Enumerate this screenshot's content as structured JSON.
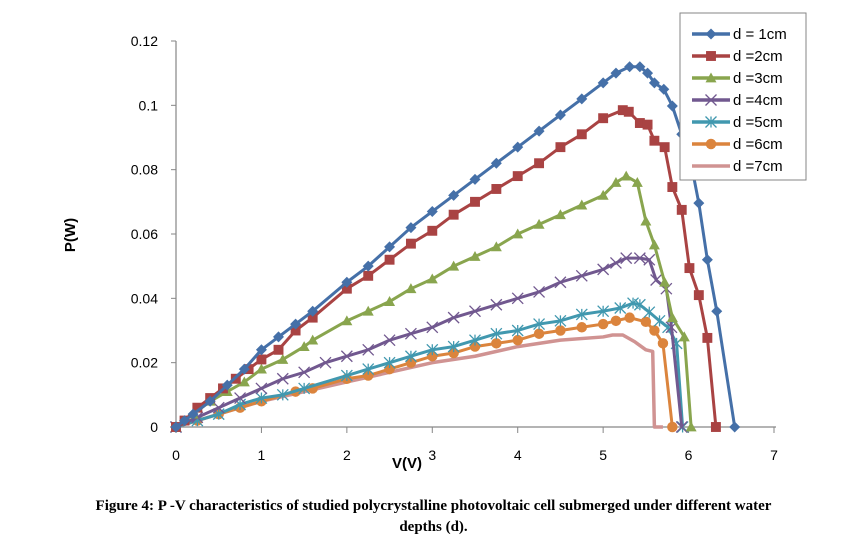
{
  "caption": {
    "line1": "Figure 4: P -V characteristics of studied polycrystalline photovoltaic cell submerged under different water",
    "line2": "depths (d)."
  },
  "chart_data": {
    "type": "line",
    "title": "",
    "xlabel": "V(V)",
    "ylabel": "P(W)",
    "xlim": [
      0,
      7
    ],
    "ylim": [
      0,
      0.12
    ],
    "xticks": [
      "0",
      "1",
      "2",
      "3",
      "4",
      "5",
      "6",
      "7"
    ],
    "yticks": [
      "0",
      "0.02",
      "0.04",
      "0.06",
      "0.08",
      "0.1",
      "0.12"
    ],
    "grid": false,
    "legend_position": "top-right",
    "series": [
      {
        "name": "d = 1cm",
        "color": "#4570A8",
        "marker": "diamond",
        "x": [
          0,
          0.1,
          0.2,
          0.4,
          0.6,
          0.8,
          1.0,
          1.2,
          1.4,
          1.6,
          2.0,
          2.25,
          2.5,
          2.75,
          3.0,
          3.25,
          3.5,
          3.75,
          4.0,
          4.25,
          4.5,
          4.75,
          5.0,
          5.15,
          5.31,
          5.43,
          5.52,
          5.6,
          5.71,
          5.81,
          5.92,
          6.01,
          6.12,
          6.22,
          6.33,
          6.54
        ],
        "y": [
          0,
          0.002,
          0.004,
          0.008,
          0.013,
          0.018,
          0.024,
          0.028,
          0.032,
          0.036,
          0.045,
          0.05,
          0.056,
          0.062,
          0.067,
          0.072,
          0.077,
          0.082,
          0.087,
          0.092,
          0.097,
          0.102,
          0.107,
          0.11,
          0.112,
          0.112,
          0.11,
          0.107,
          0.105,
          0.0998,
          0.091,
          0.0846,
          0.0696,
          0.052,
          0.036,
          0
        ]
      },
      {
        "name": "d =2cm",
        "color": "#A94343",
        "marker": "square",
        "x": [
          0,
          0.1,
          0.25,
          0.4,
          0.55,
          0.7,
          0.85,
          1.0,
          1.2,
          1.4,
          1.6,
          2.0,
          2.25,
          2.5,
          2.75,
          3.0,
          3.25,
          3.5,
          3.75,
          4.0,
          4.25,
          4.5,
          4.75,
          5.0,
          5.23,
          5.3,
          5.43,
          5.52,
          5.6,
          5.72,
          5.81,
          5.92,
          6.01,
          6.12,
          6.22,
          6.32
        ],
        "y": [
          0,
          0.002,
          0.006,
          0.009,
          0.012,
          0.015,
          0.018,
          0.021,
          0.024,
          0.03,
          0.034,
          0.043,
          0.047,
          0.052,
          0.057,
          0.061,
          0.066,
          0.07,
          0.074,
          0.078,
          0.082,
          0.087,
          0.091,
          0.096,
          0.0985,
          0.098,
          0.0945,
          0.094,
          0.089,
          0.087,
          0.0746,
          0.0675,
          0.0494,
          0.041,
          0.0277,
          0
        ]
      },
      {
        "name": "d =3cm",
        "color": "#89A54E",
        "marker": "triangle",
        "x": [
          0,
          0.2,
          0.4,
          0.6,
          0.8,
          1.0,
          1.25,
          1.5,
          1.6,
          2.0,
          2.25,
          2.5,
          2.75,
          3.0,
          3.25,
          3.5,
          3.75,
          4.0,
          4.25,
          4.5,
          4.75,
          5.0,
          5.15,
          5.27,
          5.4,
          5.5,
          5.6,
          5.72,
          5.81,
          5.95,
          6.03
        ],
        "y": [
          0,
          0.004,
          0.008,
          0.011,
          0.014,
          0.018,
          0.021,
          0.025,
          0.027,
          0.033,
          0.036,
          0.039,
          0.043,
          0.046,
          0.05,
          0.053,
          0.056,
          0.06,
          0.063,
          0.066,
          0.069,
          0.072,
          0.076,
          0.078,
          0.076,
          0.064,
          0.0566,
          0.045,
          0.034,
          0.028,
          0
        ]
      },
      {
        "name": "d =4cm",
        "color": "#71588F",
        "marker": "x",
        "x": [
          0,
          0.25,
          0.5,
          0.75,
          1.0,
          1.25,
          1.5,
          1.75,
          2.0,
          2.25,
          2.5,
          2.75,
          3.0,
          3.25,
          3.5,
          3.75,
          4.0,
          4.25,
          4.5,
          4.75,
          5.0,
          5.15,
          5.27,
          5.43,
          5.54,
          5.62,
          5.74,
          5.8,
          5.92
        ],
        "y": [
          0,
          0.003,
          0.006,
          0.009,
          0.012,
          0.015,
          0.017,
          0.02,
          0.022,
          0.024,
          0.027,
          0.029,
          0.031,
          0.034,
          0.036,
          0.038,
          0.04,
          0.042,
          0.045,
          0.047,
          0.049,
          0.051,
          0.0525,
          0.0525,
          0.052,
          0.0457,
          0.043,
          0.031,
          0
        ]
      },
      {
        "name": "d =5cm",
        "color": "#4198AF",
        "marker": "asterisk",
        "x": [
          0,
          0.25,
          0.5,
          0.75,
          1.0,
          1.25,
          1.5,
          2.0,
          2.25,
          2.5,
          2.75,
          3.0,
          3.25,
          3.5,
          3.75,
          4.0,
          4.25,
          4.5,
          4.75,
          5.0,
          5.2,
          5.35,
          5.43,
          5.54,
          5.66,
          5.76,
          5.86,
          5.93
        ],
        "y": [
          0,
          0.002,
          0.004,
          0.007,
          0.009,
          0.01,
          0.012,
          0.016,
          0.018,
          0.02,
          0.022,
          0.024,
          0.025,
          0.027,
          0.029,
          0.03,
          0.032,
          0.033,
          0.035,
          0.036,
          0.037,
          0.0385,
          0.038,
          0.0357,
          0.033,
          0.031,
          0.026,
          0
        ]
      },
      {
        "name": "d =6cm",
        "color": "#DB843D",
        "marker": "circle",
        "x": [
          0,
          0.25,
          0.5,
          0.75,
          1.0,
          1.4,
          1.6,
          2.0,
          2.25,
          2.5,
          2.75,
          3.0,
          3.25,
          3.5,
          3.75,
          4.0,
          4.25,
          4.5,
          4.75,
          5.0,
          5.15,
          5.31,
          5.5,
          5.6,
          5.7,
          5.81
        ],
        "y": [
          0,
          0.002,
          0.004,
          0.006,
          0.008,
          0.011,
          0.012,
          0.015,
          0.016,
          0.018,
          0.02,
          0.022,
          0.023,
          0.025,
          0.026,
          0.027,
          0.029,
          0.03,
          0.031,
          0.032,
          0.033,
          0.034,
          0.0327,
          0.03,
          0.026,
          0
        ]
      },
      {
        "name": "d =7cm",
        "color": "#D09392",
        "marker": "none",
        "x": [
          0,
          0.5,
          1.0,
          1.5,
          2.0,
          2.5,
          3.0,
          3.5,
          4.0,
          4.5,
          5.0,
          5.11,
          5.23,
          5.37,
          5.5,
          5.58,
          5.6,
          5.7
        ],
        "y": [
          0,
          0.004,
          0.008,
          0.011,
          0.014,
          0.017,
          0.02,
          0.022,
          0.025,
          0.027,
          0.028,
          0.0286,
          0.0286,
          0.0265,
          0.024,
          0.0235,
          0,
          0
        ]
      }
    ]
  }
}
